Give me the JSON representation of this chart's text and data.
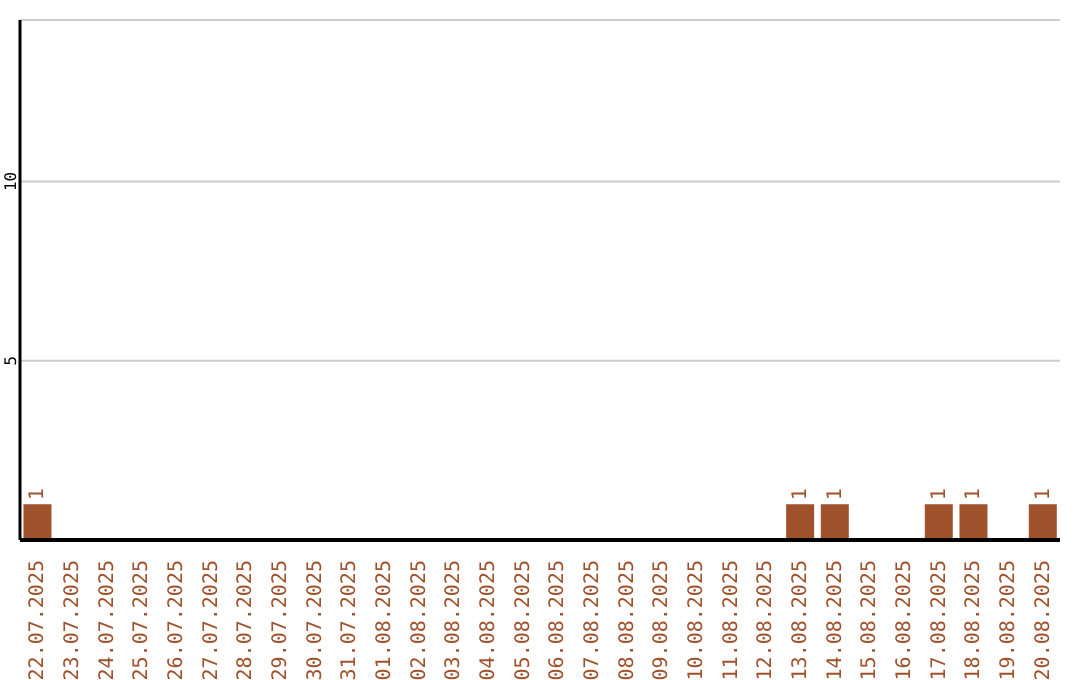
{
  "chart_data": {
    "type": "bar",
    "categories": [
      "22.07.2025",
      "23.07.2025",
      "24.07.2025",
      "25.07.2025",
      "26.07.2025",
      "27.07.2025",
      "28.07.2025",
      "29.07.2025",
      "30.07.2025",
      "31.07.2025",
      "01.08.2025",
      "02.08.2025",
      "03.08.2025",
      "04.08.2025",
      "05.08.2025",
      "06.08.2025",
      "07.08.2025",
      "08.08.2025",
      "09.08.2025",
      "10.08.2025",
      "11.08.2025",
      "12.08.2025",
      "13.08.2025",
      "14.08.2025",
      "15.08.2025",
      "16.08.2025",
      "17.08.2025",
      "18.08.2025",
      "19.08.2025",
      "20.08.2025"
    ],
    "values": [
      1,
      0,
      0,
      0,
      0,
      0,
      0,
      0,
      0,
      0,
      0,
      0,
      0,
      0,
      0,
      0,
      0,
      0,
      0,
      0,
      0,
      0,
      1,
      1,
      0,
      0,
      1,
      1,
      0,
      1
    ],
    "value_labels": [
      "1",
      null,
      null,
      null,
      null,
      null,
      null,
      null,
      null,
      null,
      null,
      null,
      null,
      null,
      null,
      null,
      null,
      null,
      null,
      null,
      null,
      null,
      "1",
      "1",
      null,
      null,
      "1",
      "1",
      null,
      "1"
    ],
    "color": "#a0522d",
    "ylim": [
      0,
      14.5
    ],
    "yticks": [
      5,
      10
    ],
    "grid": "y"
  }
}
